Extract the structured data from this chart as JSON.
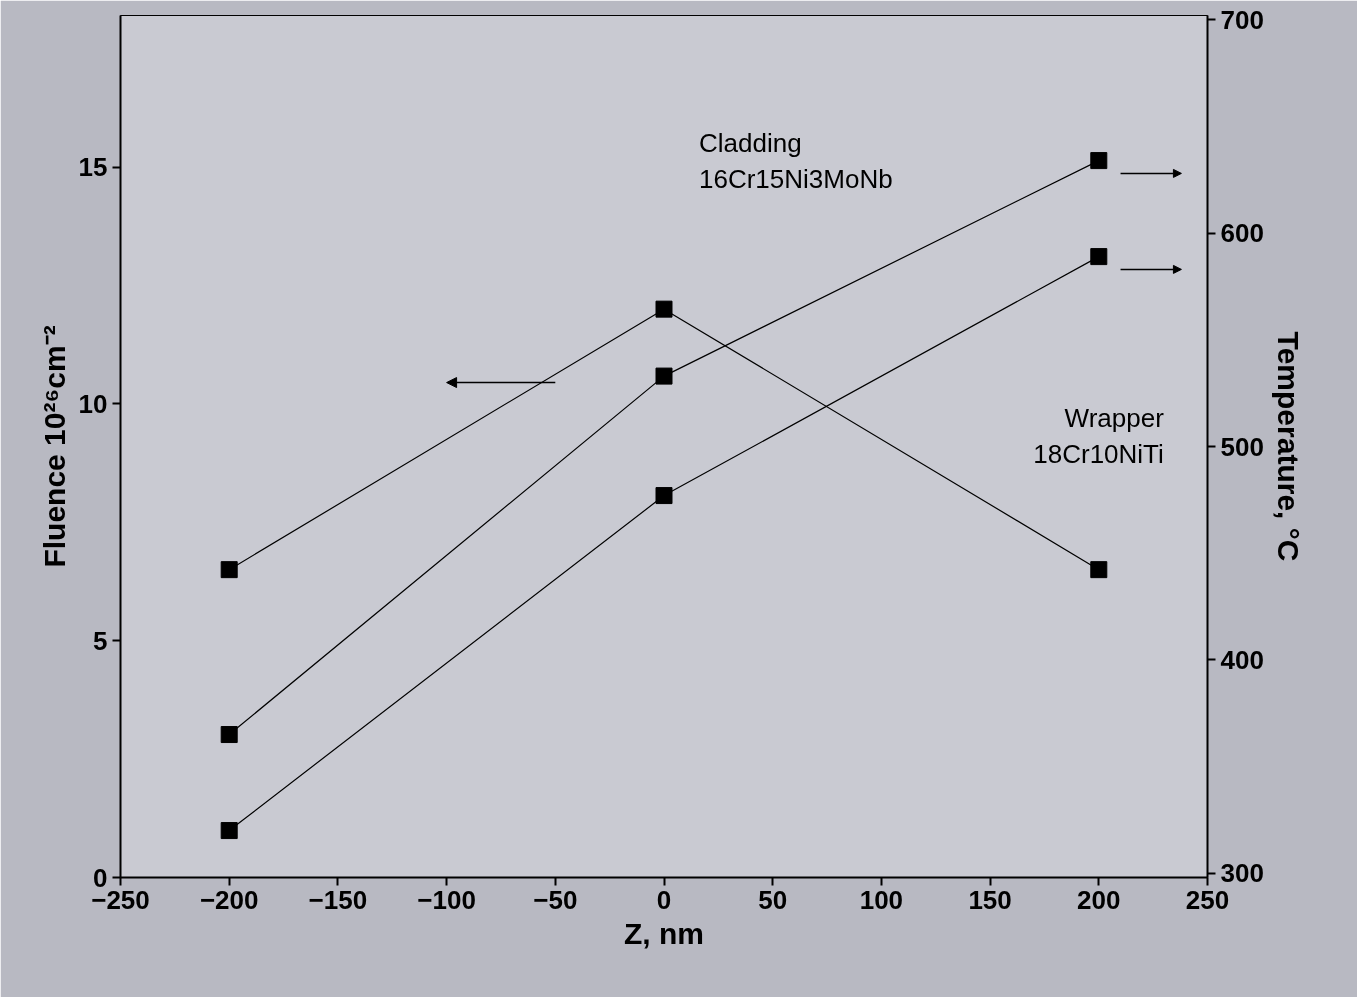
{
  "chart_data": {
    "type": "line",
    "xlabel": "Z, nm",
    "ylabel": "Fluence 10²⁶cm⁻²",
    "y2label": "Temperature, °C",
    "x": [
      -200,
      0,
      200
    ],
    "series": [
      {
        "color": "#000000",
        "values": [
          6.5,
          12,
          6.5
        ]
      },
      {
        "color": "#000000",
        "values": [
          365,
          533,
          634
        ],
        "axis": "y2"
      },
      {
        "color": "#000000",
        "values": [
          320,
          477,
          589
        ],
        "axis": "y2"
      }
    ],
    "annotations": [
      "Cladding\n16Cr15Ni3MoNb",
      "Wrapper\n18Cr10NiTi"
    ],
    "xlim": [
      -250,
      250
    ],
    "xticks": [
      -250,
      -200,
      -150,
      -100,
      -50,
      0,
      50,
      100,
      150,
      200,
      250
    ],
    "ylim": [
      0,
      18.2
    ],
    "yticks": [
      0,
      5,
      10,
      15
    ],
    "y2lim": [
      298,
      702
    ],
    "y2ticks": [
      300,
      400,
      500,
      600,
      700
    ],
    "marker": "square",
    "line_style": "solid",
    "grid": false
  }
}
